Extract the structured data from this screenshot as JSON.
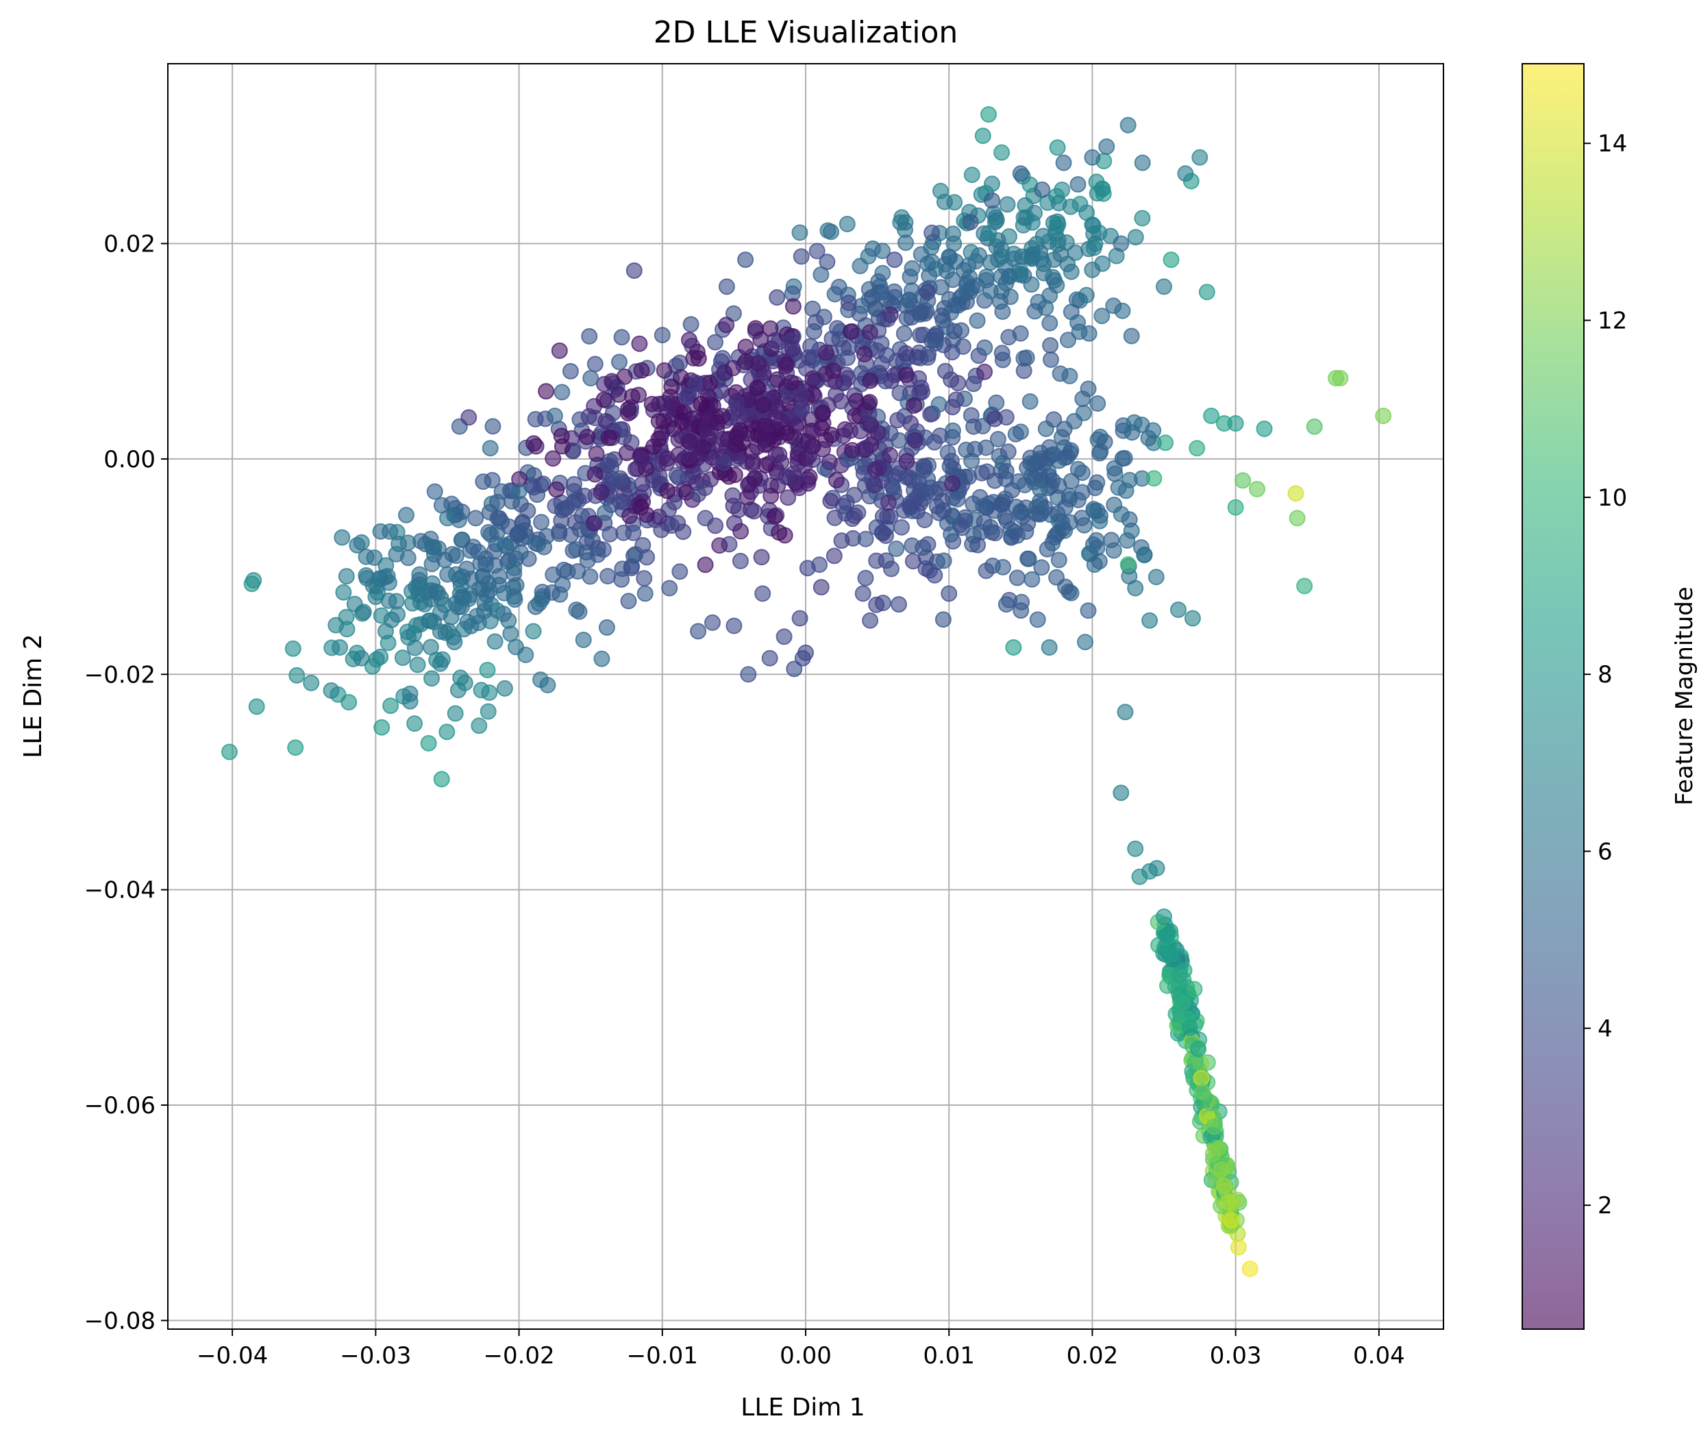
{
  "chart_data": {
    "type": "scatter",
    "title": "2D LLE Visualization",
    "xlabel": "LLE Dim 1",
    "ylabel": "LLE Dim 2",
    "xlim": [
      -0.0445,
      0.0445
    ],
    "ylim": [
      -0.0808,
      0.0367
    ],
    "grid": true,
    "colormap": "viridis",
    "point_alpha": 0.6,
    "xticks": [
      -0.04,
      -0.03,
      -0.02,
      -0.01,
      0.0,
      0.01,
      0.02,
      0.03,
      0.04
    ],
    "xtick_labels": [
      "−0.04",
      "−0.03",
      "−0.02",
      "−0.01",
      "0.00",
      "0.01",
      "0.02",
      "0.03",
      "0.04"
    ],
    "yticks": [
      -0.08,
      -0.06,
      -0.04,
      -0.02,
      0.0,
      0.02
    ],
    "ytick_labels": [
      "−0.08",
      "−0.06",
      "−0.04",
      "−0.02",
      "0.00",
      "0.02"
    ],
    "colorbar": {
      "label": "Feature Magnitude",
      "range": [
        0.6,
        14.9
      ],
      "ticks": [
        2,
        4,
        6,
        8,
        10,
        12,
        14
      ],
      "tick_labels": [
        "2",
        "4",
        "6",
        "8",
        "10",
        "12",
        "14"
      ]
    },
    "points": [
      [
        -0.0402,
        -0.0272,
        8.3
      ],
      [
        -0.0383,
        -0.023,
        7.9
      ],
      [
        -0.0356,
        -0.0268,
        8.6
      ],
      [
        -0.0355,
        -0.0201,
        7.4
      ],
      [
        -0.0345,
        -0.0208,
        7.2
      ],
      [
        -0.0331,
        -0.0215,
        7.0
      ],
      [
        -0.0325,
        -0.0175,
        6.9
      ],
      [
        -0.032,
        -0.0158,
        7.1
      ],
      [
        -0.031,
        -0.0185,
        6.8
      ],
      [
        -0.03,
        -0.0128,
        6.6
      ],
      [
        -0.0293,
        -0.016,
        6.7
      ],
      [
        -0.0285,
        -0.0068,
        6.4
      ],
      [
        -0.0276,
        -0.0218,
        6.5
      ],
      [
        -0.0276,
        -0.0225,
        6.6
      ],
      [
        -0.027,
        -0.012,
        6.3
      ],
      [
        -0.0262,
        -0.015,
        6.2
      ],
      [
        -0.025,
        -0.0055,
        6.0
      ],
      [
        -0.0245,
        -0.017,
        6.3
      ],
      [
        -0.0235,
        -0.013,
        5.9
      ],
      [
        -0.0222,
        -0.0196,
        8.0
      ],
      [
        -0.022,
        0.001,
        5.5
      ],
      [
        -0.021,
        -0.008,
        5.7
      ],
      [
        -0.02,
        -0.003,
        5.4
      ],
      [
        -0.019,
        -0.016,
        7.0
      ],
      [
        -0.0185,
        -0.0205,
        6.0
      ],
      [
        -0.018,
        -0.021,
        5.8
      ],
      [
        -0.0175,
        0.004,
        5.2
      ],
      [
        -0.017,
        0.0062,
        5.0
      ],
      [
        -0.016,
        -0.014,
        5.3
      ],
      [
        -0.0155,
        -0.0168,
        5.5
      ],
      [
        -0.015,
        0.0075,
        4.9
      ],
      [
        -0.014,
        -0.005,
        4.8
      ],
      [
        -0.013,
        0.009,
        4.6
      ],
      [
        -0.012,
        -0.009,
        4.5
      ],
      [
        -0.0112,
        -0.0125,
        4.7
      ],
      [
        -0.01,
        0.0115,
        4.3
      ],
      [
        -0.0095,
        -0.012,
        4.2
      ],
      [
        -0.009,
        -0.0015,
        3.9
      ],
      [
        -0.008,
        0.0125,
        4.1
      ],
      [
        -0.0075,
        -0.016,
        4.2
      ],
      [
        -0.007,
        -0.0055,
        3.6
      ],
      [
        -0.0065,
        -0.0152,
        4.0
      ],
      [
        -0.0055,
        0.016,
        4.1
      ],
      [
        -0.005,
        -0.0155,
        3.9
      ],
      [
        -0.0042,
        0.0185,
        4.2
      ],
      [
        -0.004,
        -0.02,
        4.1
      ],
      [
        -0.003,
        -0.0125,
        3.8
      ],
      [
        -0.0025,
        -0.0185,
        3.9
      ],
      [
        -0.002,
        0.015,
        3.5
      ],
      [
        -0.0015,
        -0.0165,
        3.8
      ],
      [
        -0.001,
        0.011,
        3.0
      ],
      [
        -0.0008,
        -0.0195,
        4.0
      ],
      [
        -0.0004,
        -0.0148,
        3.6
      ],
      [
        -0.0003,
        0.0188,
        3.9
      ],
      [
        -0.0002,
        -0.0185,
        3.7
      ],
      [
        0.0,
        -0.018,
        3.6
      ],
      [
        0.0008,
        0.0193,
        3.9
      ],
      [
        0.0015,
        0.0183,
        4.0
      ],
      [
        0.002,
        -0.009,
        3.2
      ],
      [
        0.003,
        0.0145,
        3.6
      ],
      [
        0.004,
        -0.0125,
        3.7
      ],
      [
        0.0045,
        -0.015,
        3.8
      ],
      [
        0.0055,
        0.013,
        3.3
      ],
      [
        0.0062,
        0.0185,
        3.7
      ],
      [
        0.0065,
        -0.0135,
        3.7
      ],
      [
        0.007,
        0.0098,
        3.0
      ],
      [
        0.0075,
        -0.0095,
        3.4
      ],
      [
        0.0085,
        0.0155,
        3.6
      ],
      [
        0.0088,
        0.021,
        4.2
      ],
      [
        0.009,
        -0.0108,
        3.7
      ],
      [
        0.01,
        -0.0125,
        3.9
      ],
      [
        0.0105,
        0.0055,
        3.4
      ],
      [
        0.0115,
        0.022,
        4.4
      ],
      [
        0.012,
        -0.008,
        4.1
      ],
      [
        0.013,
        0.024,
        4.6
      ],
      [
        0.014,
        -0.0135,
        4.6
      ],
      [
        0.0145,
        -0.0175,
        8.4
      ],
      [
        0.015,
        0.0265,
        4.9
      ],
      [
        0.0155,
        -0.006,
        4.5
      ],
      [
        0.0165,
        0.025,
        4.9
      ],
      [
        0.017,
        -0.0175,
        6.2
      ],
      [
        0.0175,
        -0.011,
        4.8
      ],
      [
        0.018,
        0.0275,
        5.2
      ],
      [
        0.019,
        0.0255,
        5.3
      ],
      [
        0.0195,
        -0.017,
        6.0
      ],
      [
        0.02,
        0.028,
        5.5
      ],
      [
        0.0205,
        -0.0095,
        5.1
      ],
      [
        0.021,
        0.029,
        5.7
      ],
      [
        0.0215,
        -0.0085,
        5.3
      ],
      [
        0.022,
        0.02,
        5.4
      ],
      [
        0.0225,
        0.031,
        6.0
      ],
      [
        0.023,
        -0.012,
        6.1
      ],
      [
        0.0235,
        0.0275,
        6.0
      ],
      [
        0.024,
        -0.015,
        6.6
      ],
      [
        0.025,
        0.016,
        6.3
      ],
      [
        0.0255,
        0.0185,
        8.8
      ],
      [
        0.026,
        -0.014,
        6.8
      ],
      [
        0.0265,
        0.0265,
        6.6
      ],
      [
        0.027,
        -0.0148,
        7.0
      ],
      [
        0.0275,
        0.028,
        7.0
      ],
      [
        0.028,
        0.0155,
        8.3
      ],
      [
        0.0283,
        0.004,
        8.5
      ],
      [
        0.0292,
        0.0033,
        8.7
      ],
      [
        0.03,
        0.0033,
        8.4
      ],
      [
        0.03,
        -0.0045,
        9.5
      ],
      [
        0.0305,
        -0.002,
        11.3
      ],
      [
        0.0315,
        -0.0028,
        11.6
      ],
      [
        0.032,
        0.0028,
        8.5
      ],
      [
        0.0342,
        -0.0032,
        13.9
      ],
      [
        0.0343,
        -0.0055,
        11.7
      ],
      [
        0.0348,
        -0.0118,
        9.7
      ],
      [
        0.0355,
        0.003,
        11.0
      ],
      [
        0.037,
        0.0075,
        11.8
      ],
      [
        0.0373,
        0.0075,
        12.0
      ],
      [
        0.0403,
        0.004,
        12.0
      ],
      [
        0.0273,
        0.001,
        9.3
      ],
      [
        0.0251,
        0.0015,
        9.0
      ],
      [
        0.0243,
        -0.0018,
        9.8
      ],
      [
        0.0225,
        -0.0098,
        10.2
      ],
      [
        0.0223,
        -0.0235,
        6.4
      ],
      [
        0.022,
        -0.031,
        6.8
      ],
      [
        0.023,
        -0.0362,
        7.3
      ],
      [
        0.0233,
        -0.0388,
        7.6
      ],
      [
        0.024,
        -0.0383,
        7.4
      ],
      [
        0.0245,
        -0.038,
        7.2
      ],
      [
        0.0246,
        -0.043,
        10.7
      ],
      [
        0.025,
        -0.0425,
        8.0
      ],
      [
        0.0252,
        -0.0442,
        8.4
      ],
      [
        0.0255,
        -0.046,
        8.6
      ],
      [
        0.0258,
        -0.049,
        9.3
      ],
      [
        0.0261,
        -0.0478,
        8.9
      ],
      [
        0.0263,
        -0.0505,
        9.6
      ],
      [
        0.0266,
        -0.052,
        9.7
      ],
      [
        0.0268,
        -0.0528,
        8.8
      ],
      [
        0.027,
        -0.0545,
        10.3
      ],
      [
        0.0272,
        -0.056,
        10.8
      ],
      [
        0.0274,
        -0.0548,
        9.0
      ],
      [
        0.0276,
        -0.0575,
        13.8
      ],
      [
        0.0277,
        -0.0588,
        11.6
      ],
      [
        0.028,
        -0.061,
        13.5
      ],
      [
        0.0283,
        -0.0598,
        10.9
      ],
      [
        0.0285,
        -0.062,
        11.4
      ],
      [
        0.0288,
        -0.064,
        12.0
      ],
      [
        0.029,
        -0.066,
        12.3
      ],
      [
        0.0292,
        -0.0675,
        12.7
      ],
      [
        0.0295,
        -0.069,
        13.0
      ],
      [
        0.0297,
        -0.0707,
        13.9
      ],
      [
        0.0302,
        -0.0732,
        14.4
      ],
      [
        0.031,
        -0.0752,
        14.7
      ]
    ]
  }
}
